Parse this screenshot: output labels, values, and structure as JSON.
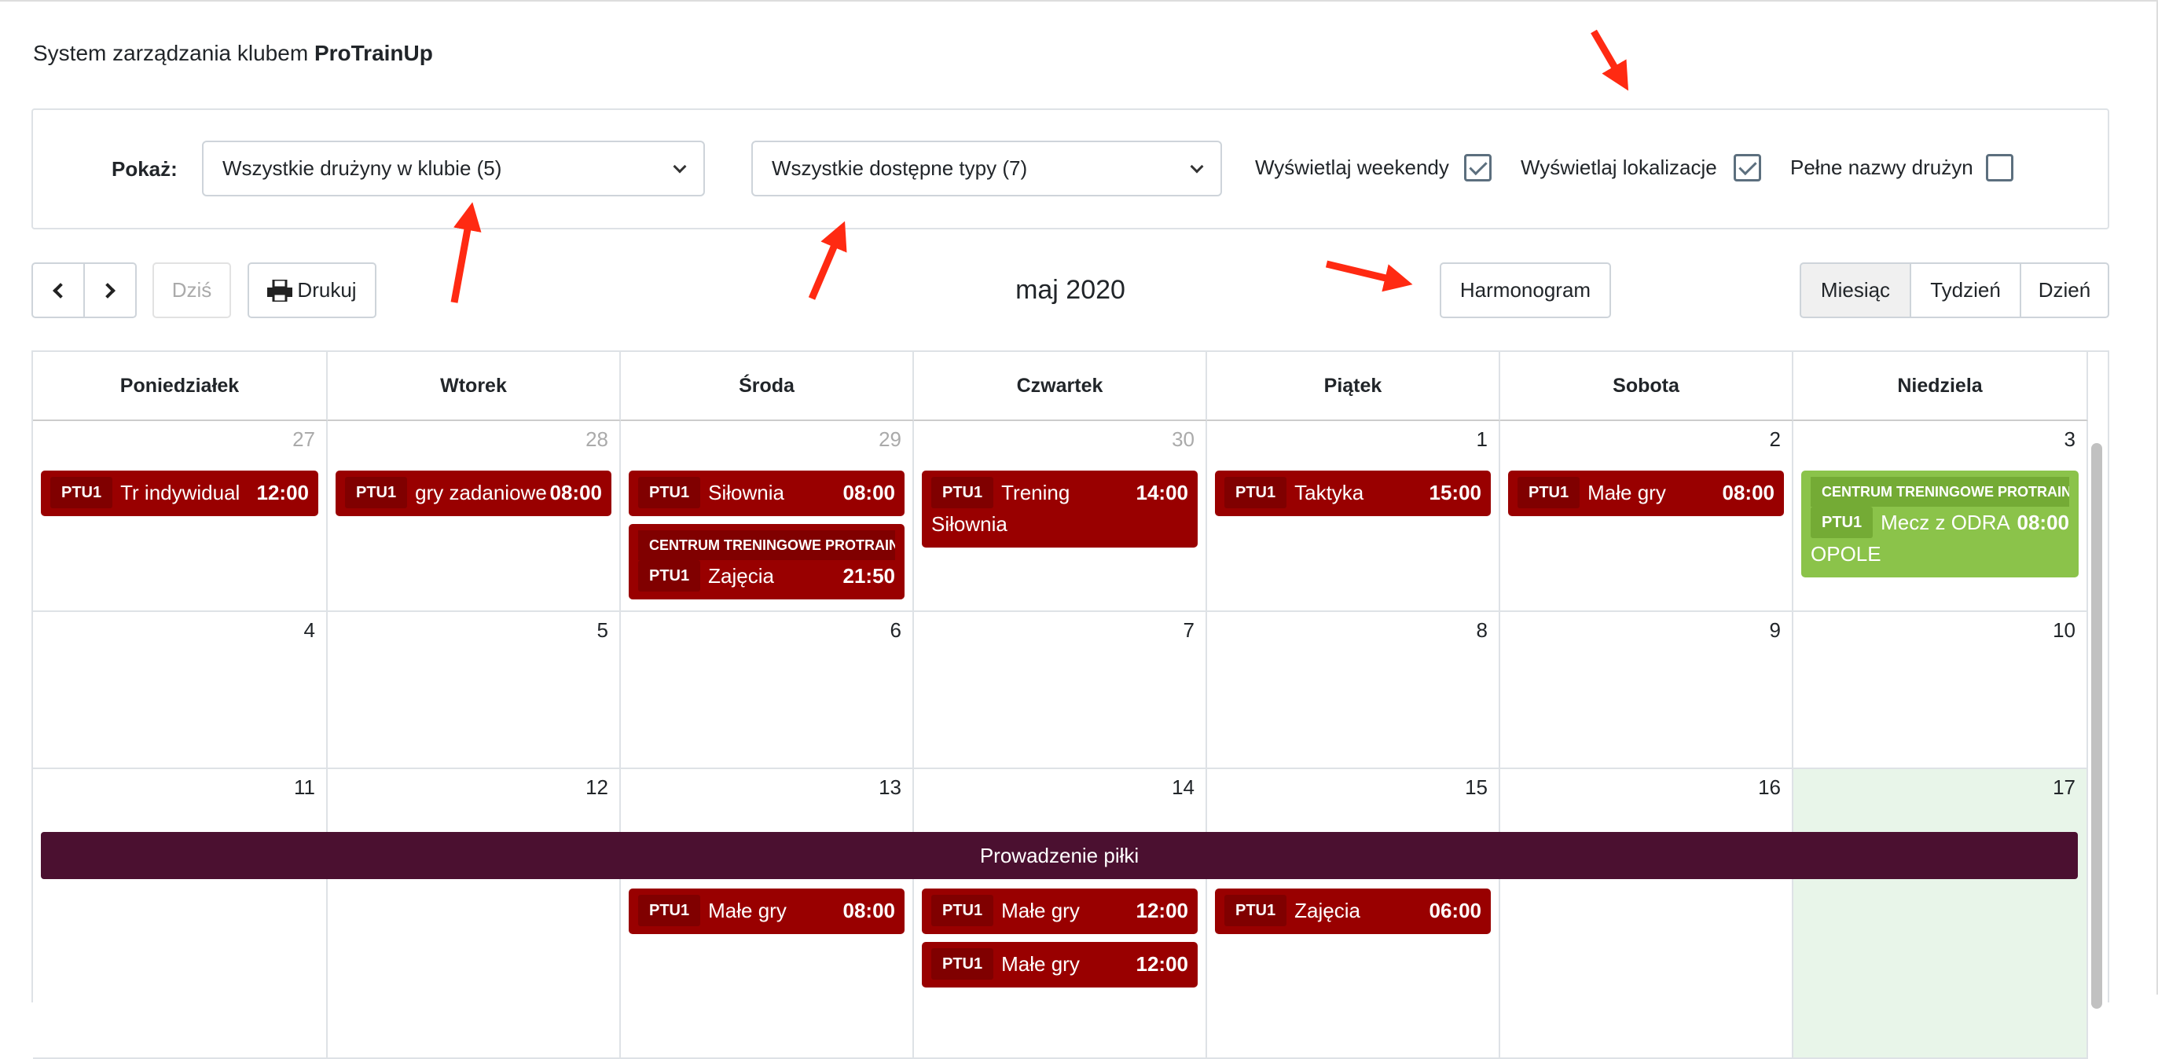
{
  "app": {
    "title_prefix": "System zarządzania klubem",
    "title_brand": "ProTrainUp"
  },
  "filters": {
    "show_label": "Pokaż:",
    "teams_select": "Wszystkie drużyny w klubie (5)",
    "types_select": "Wszystkie dostępne typy (7)",
    "weekends_label": "Wyświetlaj weekendy",
    "weekends_checked": true,
    "locations_label": "Wyświetlaj lokalizacje",
    "locations_checked": true,
    "fullnames_label": "Pełne nazwy drużyn",
    "fullnames_checked": false
  },
  "toolbar": {
    "today": "Dziś",
    "print": "Drukuj",
    "title": "maj 2020",
    "schedule": "Harmonogram",
    "views": [
      "Miesiąc",
      "Tydzień",
      "Dzień"
    ],
    "active_view": "Miesiąc"
  },
  "colors": {
    "event_red": "#990000",
    "event_green": "#8bc34a",
    "multi_day": "#4b1030",
    "today_bg": "#e8f5e9",
    "annotation_arrow": "#ff2a12"
  },
  "calendar": {
    "weekdays": [
      "Poniedziałek",
      "Wtorek",
      "Środa",
      "Czwartek",
      "Piątek",
      "Sobota",
      "Niedziela"
    ],
    "weeks": [
      [
        {
          "num": "27",
          "other": true,
          "events": [
            {
              "team": "PTU1",
              "title": "Tr indywidual",
              "time": "12:00",
              "color": "red"
            }
          ]
        },
        {
          "num": "28",
          "other": true,
          "events": [
            {
              "team": "PTU1",
              "title": "gry zadaniowe",
              "time": "08:00",
              "color": "red"
            }
          ]
        },
        {
          "num": "29",
          "other": true,
          "events": [
            {
              "team": "PTU1",
              "title": "Siłownia",
              "time": "08:00",
              "color": "red"
            },
            {
              "location": "CENTRUM TRENINGOWE PROTRAINUP",
              "team": "PTU1",
              "title": "Zajęcia",
              "time": "21:50",
              "color": "red"
            }
          ]
        },
        {
          "num": "30",
          "other": true,
          "events": [
            {
              "team": "PTU1",
              "title": "Trening Siłownia",
              "time": "14:00",
              "color": "red"
            }
          ]
        },
        {
          "num": "1",
          "events": [
            {
              "team": "PTU1",
              "title": "Taktyka",
              "time": "15:00",
              "color": "red"
            }
          ]
        },
        {
          "num": "2",
          "events": [
            {
              "team": "PTU1",
              "title": "Małe gry",
              "time": "08:00",
              "color": "red"
            }
          ]
        },
        {
          "num": "3",
          "events": [
            {
              "location": "CENTRUM TRENINGOWE PROTRAINUP",
              "team": "PTU1",
              "title": "Mecz z ODRA OPOLE",
              "time": "08:00",
              "color": "green"
            }
          ]
        }
      ],
      [
        {
          "num": "4",
          "events": []
        },
        {
          "num": "5",
          "events": []
        },
        {
          "num": "6",
          "events": []
        },
        {
          "num": "7",
          "events": []
        },
        {
          "num": "8",
          "events": []
        },
        {
          "num": "9",
          "events": []
        },
        {
          "num": "10",
          "events": []
        }
      ],
      [
        {
          "num": "11",
          "events": []
        },
        {
          "num": "12",
          "events": []
        },
        {
          "num": "13",
          "events": [
            {
              "team": "PTU1",
              "title": "Małe gry",
              "time": "08:00",
              "color": "red"
            }
          ]
        },
        {
          "num": "14",
          "events": [
            {
              "team": "PTU1",
              "title": "Małe gry",
              "time": "12:00",
              "color": "red"
            },
            {
              "team": "PTU1",
              "title": "Małe gry",
              "time": "12:00",
              "color": "red"
            }
          ]
        },
        {
          "num": "15",
          "events": [
            {
              "team": "PTU1",
              "title": "Zajęcia",
              "time": "06:00",
              "color": "red"
            }
          ]
        },
        {
          "num": "16",
          "events": []
        },
        {
          "num": "17",
          "today": true,
          "events": []
        }
      ]
    ],
    "multi_day_event": {
      "title": "Prowadzenie piłki",
      "from": "11",
      "to": "17"
    }
  }
}
